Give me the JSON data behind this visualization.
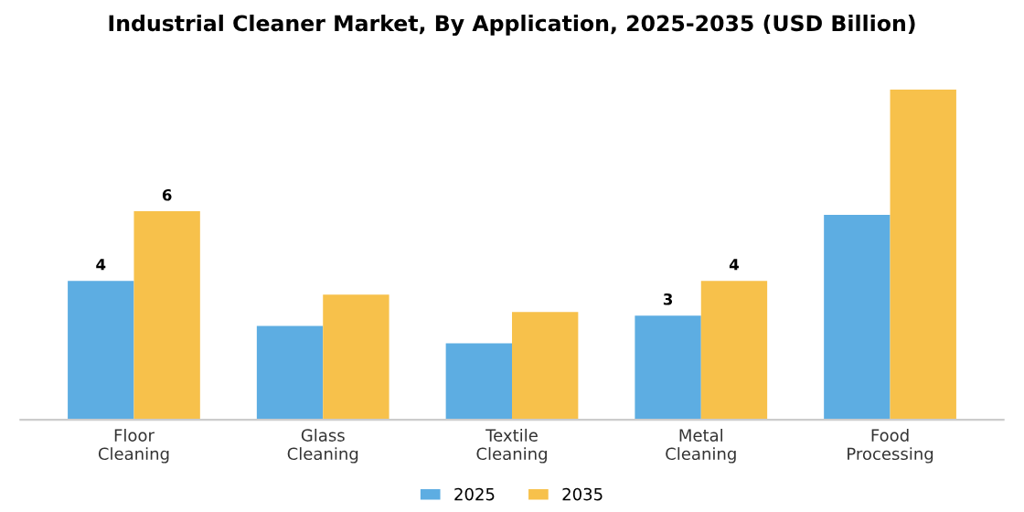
{
  "chart_data": {
    "type": "bar",
    "title": "Industrial Cleaner Market, By Application, 2025-2035 (USD Billion)",
    "categories": [
      "Floor\nCleaning",
      "Glass\nCleaning",
      "Textile\nCleaning",
      "Metal\nCleaning",
      "Food\nProcessing"
    ],
    "series": [
      {
        "name": "2025",
        "color": "#5dade2",
        "values": [
          4,
          2.7,
          2.2,
          3,
          5.9
        ],
        "value_labels": [
          "4",
          null,
          null,
          "3",
          null
        ]
      },
      {
        "name": "2035",
        "color": "#f7c14b",
        "values": [
          6,
          3.6,
          3.1,
          4,
          9.5
        ],
        "value_labels": [
          "6",
          null,
          null,
          "4",
          null
        ]
      }
    ],
    "legend": "bottom",
    "grid": false
  }
}
